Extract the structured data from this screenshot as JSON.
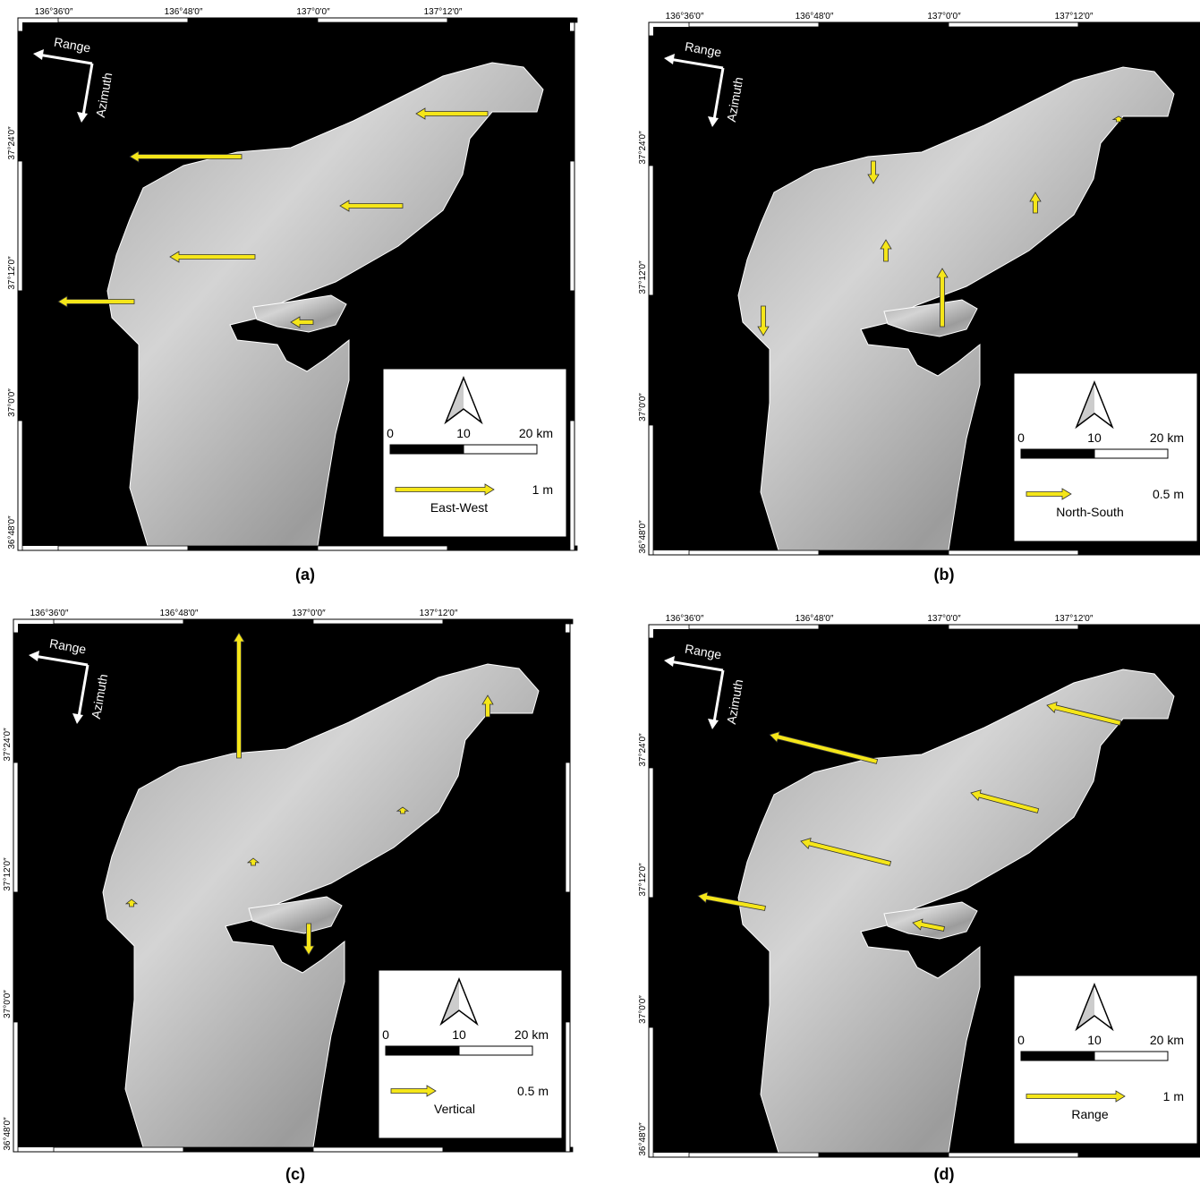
{
  "panels": [
    {
      "label": "(a)",
      "top_ticks": [
        "136°36'0″",
        "136°48'0″",
        "137°0'0″",
        "137°12'0″"
      ],
      "left_ticks": [
        "37°24'0″",
        "37°12'0″",
        "37°0'0″",
        "36°48'0″"
      ],
      "range": "Range",
      "azimuth": "Azimuth",
      "scale_labels": [
        "0",
        "10",
        "20 km"
      ],
      "legend_value": "1 m",
      "legend_name": "East-West"
    },
    {
      "label": "(b)",
      "top_ticks": [
        "136°36'0″",
        "136°48'0″",
        "137°0'0″",
        "137°12'0″"
      ],
      "left_ticks": [
        "37°24'0″",
        "37°12'0″",
        "37°0'0″",
        "36°48'0″"
      ],
      "range": "Range",
      "azimuth": "Azimuth",
      "scale_labels": [
        "0",
        "10",
        "20 km"
      ],
      "legend_value": "0.5 m",
      "legend_name": "North-South"
    },
    {
      "label": "(c)",
      "top_ticks": [
        "136°36'0″",
        "136°48'0″",
        "137°0'0″",
        "137°12'0″"
      ],
      "left_ticks": [
        "37°24'0″",
        "37°12'0″",
        "37°0'0″",
        "36°48'0″"
      ],
      "range": "Range",
      "azimuth": "Azimuth",
      "scale_labels": [
        "0",
        "10",
        "20 km"
      ],
      "legend_value": "0.5 m",
      "legend_name": "Vertical"
    },
    {
      "label": "(d)",
      "top_ticks": [
        "136°36'0″",
        "136°48'0″",
        "137°0'0″",
        "137°12'0″"
      ],
      "left_ticks": [
        "37°24'0″",
        "37°12'0″",
        "37°0'0″",
        "36°48'0″"
      ],
      "range": "Range",
      "azimuth": "Azimuth",
      "scale_labels": [
        "0",
        "10",
        "20 km"
      ],
      "legend_value": "1 m",
      "legend_name": "Range"
    }
  ]
}
